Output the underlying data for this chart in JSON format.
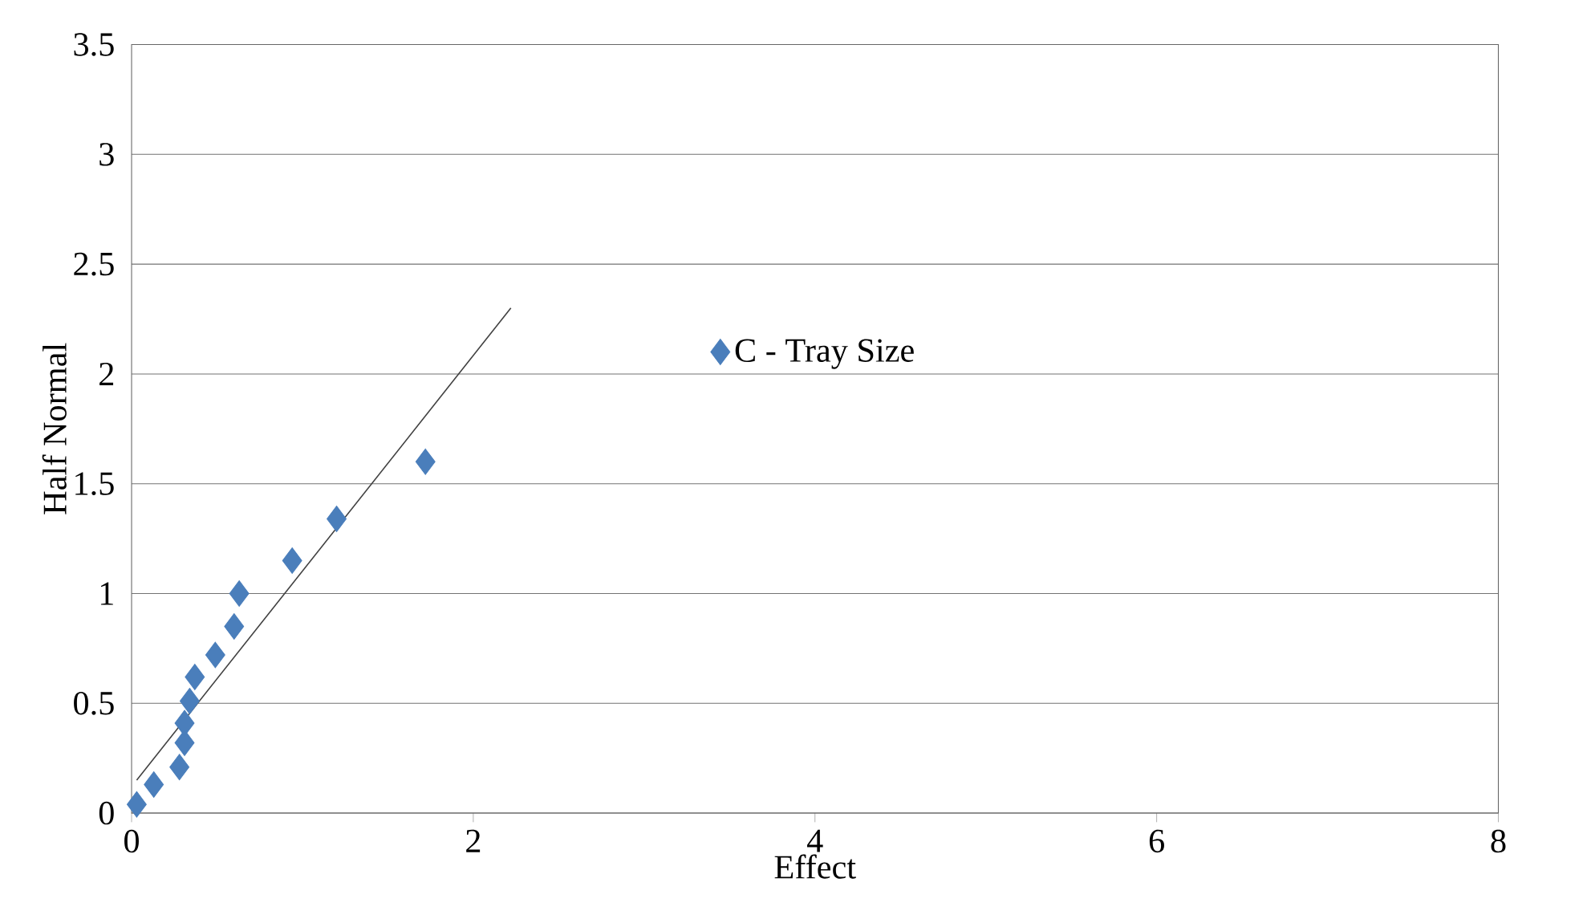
{
  "chart_data": {
    "type": "scatter",
    "xlabel": "Effect",
    "ylabel": "Half Normal",
    "xlim": [
      0,
      8
    ],
    "xticks": [
      0,
      2,
      4,
      6,
      8
    ],
    "ylim": [
      0,
      3.5
    ],
    "yticks": [
      0,
      0.5,
      1,
      1.5,
      2,
      2.5,
      3,
      3.5
    ],
    "grid": "y",
    "legend": "center",
    "series": [
      {
        "name": "C - Tray Size",
        "color": "#4a7ebb",
        "marker": "diamond",
        "x": [
          0.03,
          0.13,
          0.28,
          0.31,
          0.31,
          0.34,
          0.37,
          0.49,
          0.6,
          0.63,
          0.94,
          1.2,
          1.72
        ],
        "values": [
          0.04,
          0.13,
          0.21,
          0.32,
          0.41,
          0.51,
          0.62,
          0.72,
          0.85,
          1.0,
          1.15,
          1.34,
          1.6
        ]
      },
      {
        "type": "line",
        "color": "#404040",
        "line_style": "solid",
        "marker": "none",
        "x": [
          0.03,
          2.22
        ],
        "values": [
          0.15,
          2.3
        ]
      }
    ]
  }
}
